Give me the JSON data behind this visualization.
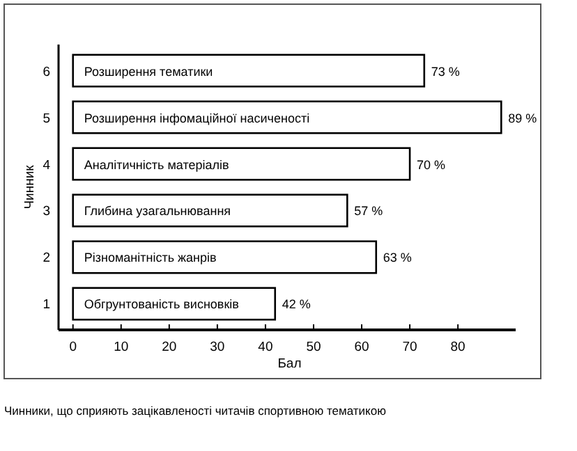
{
  "chart_data": {
    "type": "bar",
    "orientation": "horizontal",
    "xlabel": "Бал",
    "ylabel": "Чинник",
    "categories": [
      "6",
      "5",
      "4",
      "3",
      "2",
      "1"
    ],
    "values": [
      73,
      89,
      70,
      57,
      63,
      42
    ],
    "value_labels": [
      "73 %",
      "89 %",
      "70 %",
      "57 %",
      "63 %",
      "42 %"
    ],
    "color": "#ffffff",
    "xlim": [
      -3,
      92
    ],
    "xticks": [
      0,
      10,
      20,
      30,
      40,
      50,
      60,
      70,
      80
    ],
    "grid": false,
    "annotations": [
      {
        "text": "Розширення тематики",
        "y": "6"
      },
      {
        "text": "Розширення інфомаційної насиченості",
        "y": "5"
      },
      {
        "text": "Аналітичність матеріалів",
        "y": "4"
      },
      {
        "text": "Глибина узагальнювання",
        "y": "3"
      },
      {
        "text": "Різноманітність жанрів",
        "y": "2"
      },
      {
        "text": "Обгрунтованість висновків",
        "y": "1"
      },
      "Чинники, що сприяють зацікавленості читачів спортивною тематикою"
    ]
  }
}
